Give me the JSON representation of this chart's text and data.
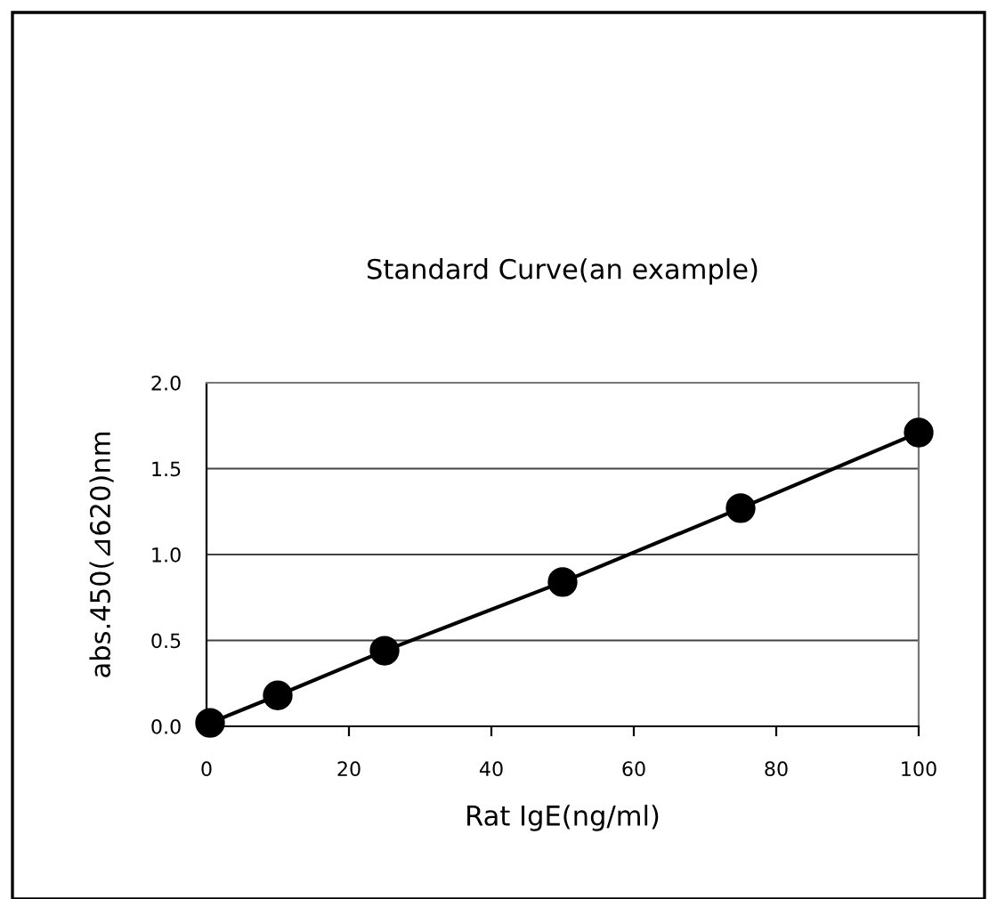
{
  "chart_data": {
    "type": "line",
    "title": "Standard Curve(an example)",
    "xlabel": "Rat IgE(ng/ml)",
    "ylabel": "abs.450(⊿620)nm",
    "x": [
      0.5,
      10,
      25,
      50,
      75,
      100
    ],
    "series": [
      {
        "color": "#000000",
        "values": [
          0.02,
          0.18,
          0.44,
          0.84,
          1.27,
          1.71
        ]
      }
    ],
    "xlim": [
      0,
      100
    ],
    "xticks": [
      0,
      20,
      40,
      60,
      80,
      100
    ],
    "ylim": [
      0,
      2
    ],
    "yticks": [
      {
        "value": 0,
        "label": "0.0"
      },
      {
        "value": 0.5,
        "label": "0.5"
      },
      {
        "value": 1,
        "label": "1.0"
      },
      {
        "value": 1.5,
        "label": "1.5"
      },
      {
        "value": 2,
        "label": "2.0"
      }
    ],
    "grid": "y",
    "marker": "circle",
    "line_style": "solid"
  }
}
